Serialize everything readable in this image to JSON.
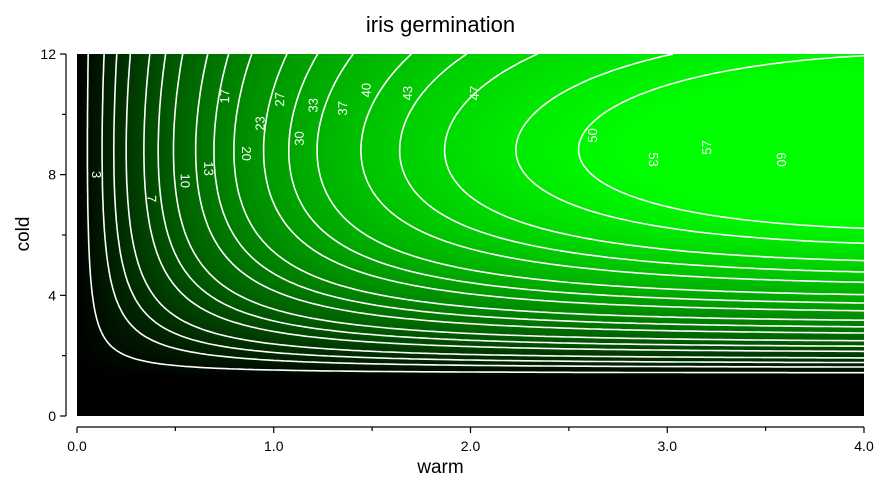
{
  "chart_data": {
    "type": "heatmap",
    "subtype": "filled contour with labeled contour lines",
    "title": "iris germination",
    "xlabel": "warm",
    "ylabel": "cold",
    "xlim": [
      0.0,
      4.0
    ],
    "ylim": [
      0,
      12
    ],
    "x_ticks": [
      "0.0",
      "1.0",
      "2.0",
      "3.0",
      "4.0"
    ],
    "y_ticks": [
      "0",
      "4",
      "8",
      "12"
    ],
    "color_low": "#000000",
    "color_high": "#00ff00",
    "contour_color": "#ffffff",
    "value_range": [
      0,
      62
    ],
    "contour_levels": [
      {
        "level": 3,
        "label": "3",
        "label_at": [
          0.1,
          8.0
        ]
      },
      {
        "level": 7,
        "label": "7",
        "label_at": [
          0.38,
          7.2
        ]
      },
      {
        "level": 10,
        "label": "10",
        "label_at": [
          0.55,
          7.8
        ]
      },
      {
        "level": 13,
        "label": "13",
        "label_at": [
          0.67,
          8.2
        ]
      },
      {
        "level": 17,
        "label": "17",
        "label_at": [
          0.75,
          10.6
        ]
      },
      {
        "level": 20,
        "label": "20",
        "label_at": [
          0.86,
          8.7
        ]
      },
      {
        "level": 23,
        "label": "23",
        "label_at": [
          0.93,
          9.7
        ]
      },
      {
        "level": 27,
        "label": "27",
        "label_at": [
          1.03,
          10.5
        ]
      },
      {
        "level": 30,
        "label": "30",
        "label_at": [
          1.13,
          9.2
        ]
      },
      {
        "level": 33,
        "label": "33",
        "label_at": [
          1.2,
          10.3
        ]
      },
      {
        "level": 37,
        "label": "37",
        "label_at": [
          1.35,
          10.2
        ]
      },
      {
        "level": 40,
        "label": "40",
        "label_at": [
          1.47,
          10.8
        ]
      },
      {
        "level": 43,
        "label": "43",
        "label_at": [
          1.68,
          10.7
        ]
      },
      {
        "level": 47,
        "label": "47",
        "label_at": [
          2.02,
          10.7
        ]
      },
      {
        "level": 50,
        "label": "50",
        "label_at": [
          2.62,
          9.3
        ]
      },
      {
        "level": 53,
        "label": "53",
        "label_at": [
          2.93,
          8.5
        ]
      },
      {
        "level": 57,
        "label": "57",
        "label_at": [
          3.2,
          8.9
        ]
      },
      {
        "level": 60,
        "label": "60",
        "label_at": [
          3.58,
          8.5
        ]
      }
    ],
    "grid": false,
    "legend": "none"
  }
}
